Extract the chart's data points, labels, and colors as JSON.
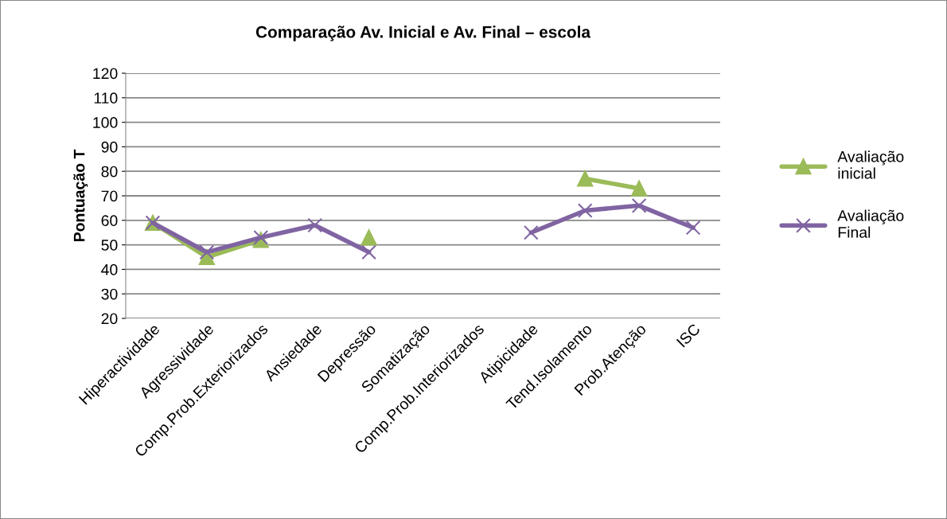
{
  "chart_data": {
    "type": "line",
    "title": "Comparação Av. Inicial e Av. Final – escola",
    "ylabel": "Pontuação T",
    "categories": [
      "Hiperactividade",
      "Agressividade",
      "Comp.Prob.Exteriorizados",
      "Ansiedade",
      "Depressão",
      "Somatização",
      "Comp.Prob.Interiorizados",
      "Atipicidade",
      "Tend.Isolamento",
      "Prob.Atenção",
      "ISC"
    ],
    "series": [
      {
        "name": "Avaliação inicial",
        "color": "#9bbb59",
        "marker": "triangle",
        "values": [
          59,
          45,
          52,
          null,
          53,
          null,
          null,
          null,
          77,
          73,
          null
        ]
      },
      {
        "name": "Avaliação Final",
        "color": "#8064a2",
        "marker": "cross",
        "values": [
          59,
          47,
          53,
          58,
          47,
          null,
          null,
          55,
          64,
          66,
          57
        ]
      }
    ],
    "ylim": [
      20,
      120
    ],
    "yticks": [
      20,
      30,
      40,
      50,
      60,
      70,
      80,
      90,
      100,
      110,
      120
    ],
    "grid": "y",
    "legend": "right"
  }
}
